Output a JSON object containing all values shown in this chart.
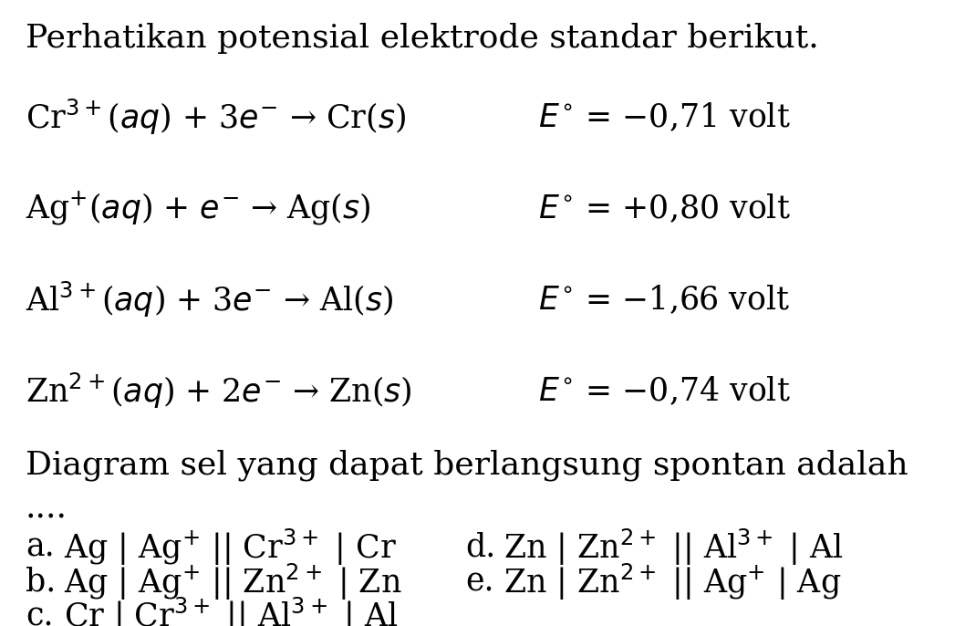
{
  "title": "Perhatikan potensial elektrode standar berikut.",
  "reactions": [
    {
      "left": "Cr$^{3+}$($aq$) + 3$e^{-}$ → Cr($s$)",
      "right": "$E^{\\circ}$ = −0,71 volt"
    },
    {
      "left": "Ag$^{+}$($aq$) + $e^{-}$ → Ag($s$)",
      "right": "$E^{\\circ}$ = +0,80 volt"
    },
    {
      "left": "Al$^{3+}$($aq$) + 3$e^{-}$ → Al($s$)",
      "right": "$E^{\\circ}$ = −1,66 volt"
    },
    {
      "left": "Zn$^{2+}$($aq$) + 2$e^{-}$ → Zn($s$)",
      "right": "$E^{\\circ}$ = −0,74 volt"
    }
  ],
  "question_line1": "Diagram sel yang dapat berlangsung spontan adalah",
  "question_line2": "....",
  "options_left": [
    {
      "label": "a.",
      "text": "Ag | Ag$^{+}$ || Cr$^{3+}$ | Cr"
    },
    {
      "label": "b.",
      "text": "Ag | Ag$^{+}$ || Zn$^{2+}$ | Zn"
    },
    {
      "label": "c.",
      "text": "Cr | Cr$^{3+}$ || Al$^{3+}$ | Al"
    }
  ],
  "options_right": [
    {
      "label": "d.",
      "text": "Zn | Zn$^{2+}$ || Al$^{3+}$ | Al"
    },
    {
      "label": "e.",
      "text": "Zn | Zn$^{2+}$ || Ag$^{+}$ | Ag"
    }
  ],
  "bg_color": "#ffffff",
  "text_color": "#000000",
  "fontsize_title": 26,
  "fontsize_reaction": 25,
  "fontsize_options": 25
}
